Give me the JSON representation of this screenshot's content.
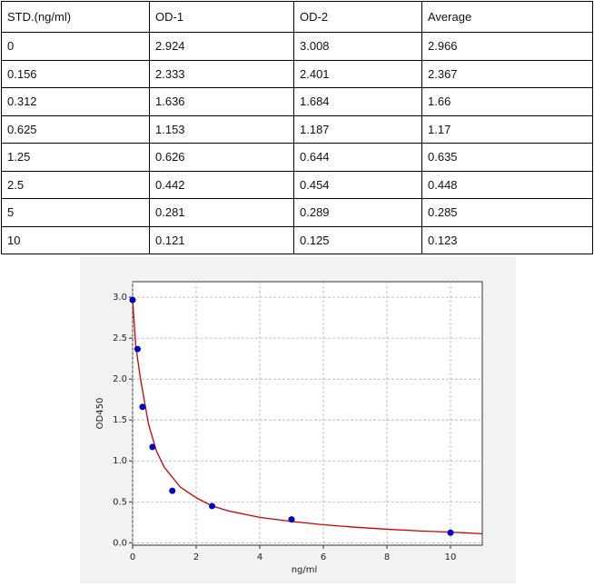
{
  "table": {
    "header": [
      "STD.(ng/ml)",
      "OD-1",
      "OD-2",
      "Average"
    ],
    "rows": [
      [
        "0",
        "2.924",
        "3.008",
        "2.966"
      ],
      [
        "0.156",
        "2.333",
        "2.401",
        "2.367"
      ],
      [
        "0.312",
        "1.636",
        "1.684",
        "1.66"
      ],
      [
        "0.625",
        "1.153",
        "1.187",
        "1.17"
      ],
      [
        "1.25",
        "0.626",
        "0.644",
        "0.635"
      ],
      [
        "2.5",
        "0.442",
        "0.454",
        "0.448"
      ],
      [
        "5",
        "0.281",
        "0.289",
        "0.285"
      ],
      [
        "10",
        "0.121",
        "0.125",
        "0.123"
      ]
    ]
  },
  "chart_data": {
    "type": "scatter",
    "x_label": "ng/ml",
    "y_label": "OD450",
    "x": [
      0,
      0.156,
      0.312,
      0.625,
      1.25,
      2.5,
      5,
      10
    ],
    "series": [
      {
        "color": "#0000cc",
        "values": [
          2.966,
          2.367,
          1.66,
          1.17,
          0.635,
          0.448,
          0.285,
          0.123
        ]
      }
    ],
    "fit": {
      "color": "#cc0000",
      "x": [
        0,
        0.1,
        0.25,
        0.5,
        0.75,
        1,
        1.5,
        2,
        2.5,
        3,
        4,
        5,
        6,
        7,
        8,
        9,
        10,
        11
      ],
      "values": [
        2.97,
        2.4,
        2.0,
        1.45,
        1.12,
        0.92,
        0.68,
        0.55,
        0.45,
        0.39,
        0.31,
        0.26,
        0.22,
        0.19,
        0.165,
        0.145,
        0.13,
        0.11
      ]
    },
    "xlim": [
      0,
      11
    ],
    "ylim": [
      -0.03,
      3.19
    ],
    "xticks": [
      0,
      2,
      4,
      6,
      8,
      10
    ],
    "yticks": [
      {
        "value": 0,
        "label": "0.0"
      },
      0.5,
      {
        "value": 1,
        "label": "1.0"
      },
      1.5,
      {
        "value": 2,
        "label": "2.0"
      },
      2.5,
      {
        "value": 3,
        "label": "3.0"
      }
    ],
    "grid": true
  }
}
